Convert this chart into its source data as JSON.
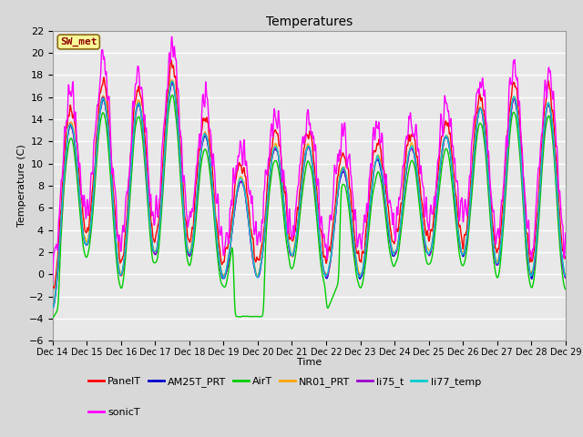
{
  "title": "Temperatures",
  "xlabel": "Time",
  "ylabel": "Temperature (C)",
  "ylim": [
    -6,
    22
  ],
  "yticks": [
    -6,
    -4,
    -2,
    0,
    2,
    4,
    6,
    8,
    10,
    12,
    14,
    16,
    18,
    20,
    22
  ],
  "x_labels": [
    "Dec 14",
    "Dec 15",
    "Dec 16",
    "Dec 17",
    "Dec 18",
    "Dec 19",
    "Dec 20",
    "Dec 21",
    "Dec 22",
    "Dec 23",
    "Dec 24",
    "Dec 25",
    "Dec 26",
    "Dec 27",
    "Dec 28",
    "Dec 29"
  ],
  "annotation_text": "SW_met",
  "annotation_color": "#8B0000",
  "annotation_bg": "#FFFF99",
  "series_colors": {
    "PanelT": "#FF0000",
    "AM25T_PRT": "#0000CC",
    "AirT": "#00CC00",
    "NR01_PRT": "#FFA500",
    "li75_t": "#9900CC",
    "li77_temp": "#00CCCC",
    "sonicT": "#FF00FF"
  },
  "background_color": "#D8D8D8",
  "plot_bg": "#E8E8E8",
  "grid_color": "#FFFFFF",
  "figsize": [
    6.4,
    4.8
  ],
  "dpi": 100
}
